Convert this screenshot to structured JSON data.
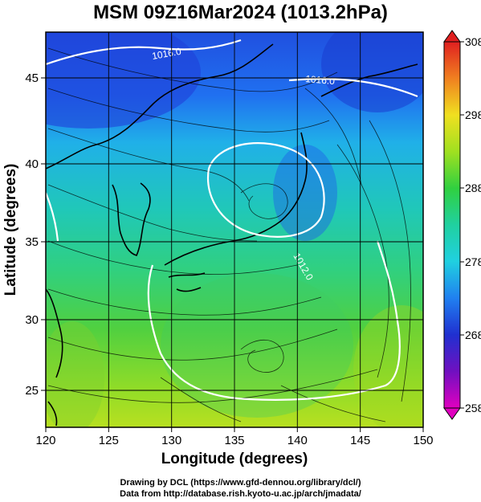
{
  "title": "MSM 09Z16Mar2024 (1013.2hPa)",
  "map": {
    "xlabel": "Longitude (degrees)",
    "ylabel": "Latitude  (degrees)",
    "xticks": [
      "120",
      "125",
      "130",
      "135",
      "140",
      "145",
      "150"
    ],
    "yticks": [
      "25",
      "30",
      "35",
      "40",
      "45"
    ],
    "isobar_labels": [
      "1016.0",
      "1016.0",
      "1012.0"
    ],
    "lon_range": [
      120,
      150
    ],
    "lat_range": [
      22.4,
      47.6
    ]
  },
  "colorbar": {
    "ticks": [
      "258",
      "268",
      "278",
      "288",
      "298",
      "308"
    ],
    "range": [
      258,
      308
    ]
  },
  "credits": {
    "line1": "Drawing by DCL (https://www.gfd-dennou.org/library/dcl/)",
    "line2": "Data from http://database.rish.kyoto-u.ac.jp/arch/jmadata/"
  }
}
